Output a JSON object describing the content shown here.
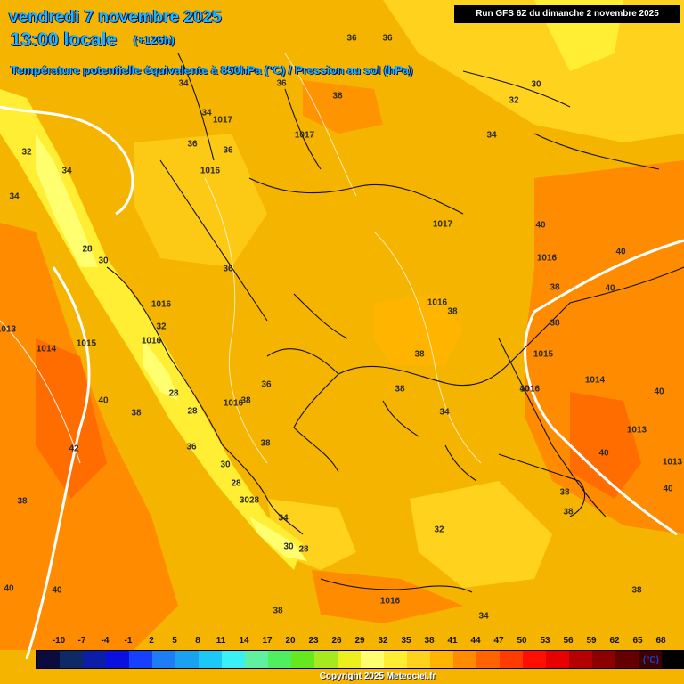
{
  "header": {
    "date": "vendredi 7 novembre 2025",
    "time": "13:00 locale",
    "offset": "(+126h)",
    "subtitle": "Température potentielle équivalente à 850hPa (°C) / Pression au sol (hPa)"
  },
  "run_info": "Run GFS 6Z du dimanche 2 novembre 2025",
  "map_labels": [
    "36",
    "36",
    "34",
    "1017",
    "34",
    "36",
    "1016",
    "1017",
    "38",
    "36",
    "36",
    "34",
    "34",
    "32",
    "30",
    "32",
    "34",
    "1017",
    "36",
    "28",
    "30",
    "1016",
    "1016",
    "1013",
    "1014",
    "1015",
    "1016",
    "32",
    "28",
    "28",
    "38",
    "40",
    "36",
    "42",
    "38",
    "36",
    "1016",
    "38",
    "38",
    "40",
    "38",
    "38",
    "38",
    "1016",
    "1016",
    "1014",
    "1013",
    "1015",
    "40",
    "40",
    "40",
    "40",
    "1013",
    "40",
    "40",
    "38",
    "38",
    "30",
    "28",
    "3028",
    "34",
    "32",
    "30",
    "28",
    "38",
    "40",
    "40",
    "38",
    "1016",
    "34",
    "38",
    "38",
    "34"
  ],
  "legend": {
    "ticks": [
      "-10",
      "-7",
      "-4",
      "-1",
      "2",
      "5",
      "8",
      "11",
      "14",
      "17",
      "20",
      "23",
      "26",
      "29",
      "32",
      "35",
      "38",
      "41",
      "44",
      "47",
      "50",
      "53",
      "56",
      "59",
      "62",
      "65",
      "68"
    ],
    "colors": [
      "#0b0b3d",
      "#0d2a66",
      "#0a1ea8",
      "#0a10e0",
      "#1640ff",
      "#1e7cf5",
      "#1aa2f0",
      "#1cc8f5",
      "#3af0f5",
      "#60f0a0",
      "#4ef060",
      "#66e81e",
      "#a8e81e",
      "#eef01e",
      "#ffff70",
      "#ffee33",
      "#ffd21e",
      "#ffb400",
      "#ff8c00",
      "#ff6400",
      "#ff3c00",
      "#ff0f00",
      "#e60000",
      "#b40000",
      "#8c0000",
      "#640000",
      "#3c0000",
      "#000000"
    ],
    "unit": "(°C)"
  },
  "footer": {
    "copyright": "Copyright 2025 Meteociel.fr"
  }
}
